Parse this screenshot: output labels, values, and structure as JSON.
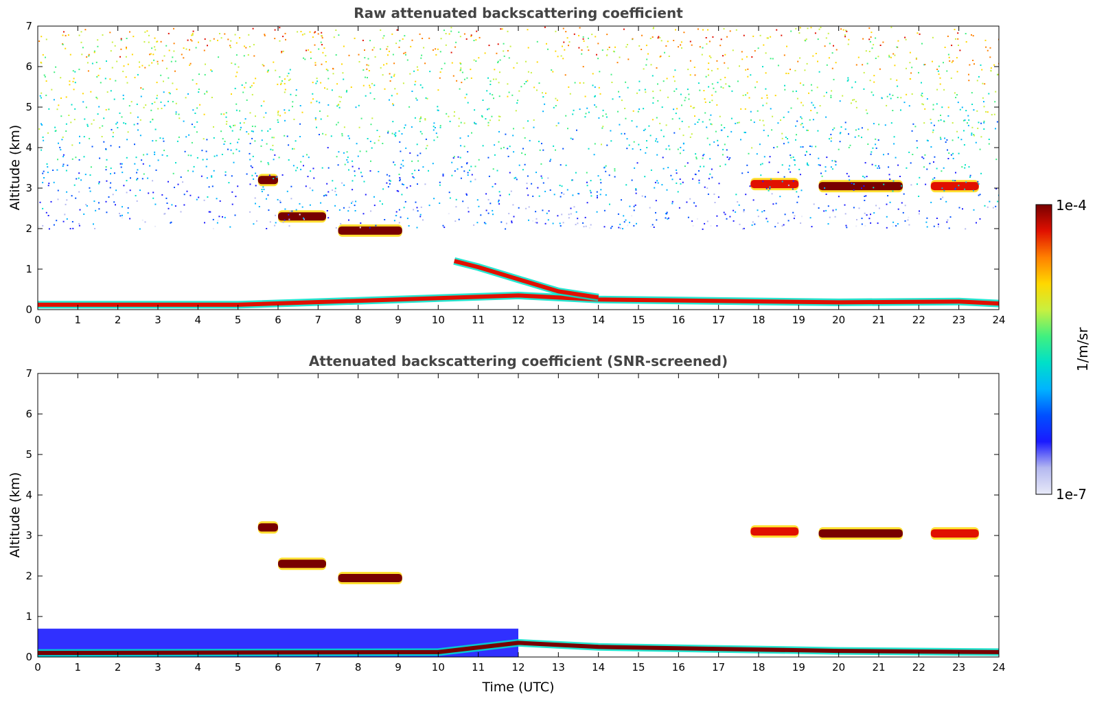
{
  "chart_data": [
    {
      "type": "heatmap",
      "title": "Raw attenuated backscattering coefficient",
      "xlabel": "",
      "ylabel": "Altitude (km)",
      "xlim": [
        0,
        24
      ],
      "ylim": [
        0,
        7
      ],
      "xticks": [
        "0",
        "1",
        "2",
        "3",
        "4",
        "5",
        "6",
        "7",
        "8",
        "9",
        "10",
        "11",
        "12",
        "13",
        "14",
        "15",
        "16",
        "17",
        "18",
        "19",
        "20",
        "21",
        "22",
        "23",
        "24"
      ],
      "yticks": [
        "0",
        "1",
        "2",
        "3",
        "4",
        "5",
        "6",
        "7"
      ],
      "features": [
        {
          "name": "surface layer",
          "segments": [
            [
              0,
              0.12
            ],
            [
              5,
              0.12
            ],
            [
              12,
              0.35
            ],
            [
              14,
              0.25
            ],
            [
              20,
              0.18
            ],
            [
              23,
              0.2
            ],
            [
              24,
              0.15
            ]
          ],
          "intensity": "high"
        },
        {
          "name": "aerosol layer top",
          "segments": [
            [
              10.4,
              1.2
            ],
            [
              11,
              1.05
            ],
            [
              12,
              0.75
            ],
            [
              13,
              0.45
            ],
            [
              14,
              0.3
            ]
          ],
          "intensity": "high"
        },
        {
          "name": "cloud 1",
          "t": [
            5.5,
            6.0
          ],
          "z": 3.2,
          "intensity": "very high"
        },
        {
          "name": "cloud 2",
          "t": [
            6.0,
            7.2
          ],
          "z": 2.3,
          "intensity": "very high"
        },
        {
          "name": "cloud 3",
          "t": [
            7.5,
            9.1
          ],
          "z": 1.95,
          "intensity": "very high"
        },
        {
          "name": "cloud 4",
          "t": [
            17.8,
            19.0
          ],
          "z": 3.1,
          "intensity": "high"
        },
        {
          "name": "cloud 5",
          "t": [
            19.5,
            21.6
          ],
          "z": 3.05,
          "intensity": "very high"
        },
        {
          "name": "cloud 6",
          "t": [
            22.3,
            23.5
          ],
          "z": 3.05,
          "intensity": "high"
        },
        {
          "name": "noise region",
          "t": [
            0,
            24
          ],
          "z": [
            2,
            7
          ],
          "intensity": "noisy"
        }
      ]
    },
    {
      "type": "heatmap",
      "title": "Attenuated backscattering coefficient (SNR-screened)",
      "xlabel": "Time (UTC)",
      "ylabel": "Altitude (km)",
      "xlim": [
        0,
        24
      ],
      "ylim": [
        0,
        7
      ],
      "xticks": [
        "0",
        "1",
        "2",
        "3",
        "4",
        "5",
        "6",
        "7",
        "8",
        "9",
        "10",
        "11",
        "12",
        "13",
        "14",
        "15",
        "16",
        "17",
        "18",
        "19",
        "20",
        "21",
        "22",
        "23",
        "24"
      ],
      "yticks": [
        "0",
        "1",
        "2",
        "3",
        "4",
        "5",
        "6",
        "7"
      ],
      "features": [
        {
          "name": "boundary layer",
          "t": [
            0,
            12
          ],
          "z": [
            0,
            0.7
          ],
          "intensity": "medium"
        },
        {
          "name": "surface layer",
          "segments": [
            [
              0,
              0.1
            ],
            [
              10,
              0.12
            ],
            [
              12,
              0.35
            ],
            [
              14,
              0.25
            ],
            [
              20,
              0.15
            ],
            [
              24,
              0.12
            ]
          ],
          "intensity": "very high"
        },
        {
          "name": "cloud 1",
          "t": [
            5.5,
            6.0
          ],
          "z": 3.2,
          "intensity": "very high"
        },
        {
          "name": "cloud 2",
          "t": [
            6.0,
            7.2
          ],
          "z": 2.3,
          "intensity": "very high"
        },
        {
          "name": "cloud 3",
          "t": [
            7.5,
            9.1
          ],
          "z": 1.95,
          "intensity": "very high"
        },
        {
          "name": "cloud 4",
          "t": [
            17.8,
            19.0
          ],
          "z": 3.1,
          "intensity": "high"
        },
        {
          "name": "cloud 5",
          "t": [
            19.5,
            21.6
          ],
          "z": 3.05,
          "intensity": "very high"
        },
        {
          "name": "cloud 6",
          "t": [
            22.3,
            23.5
          ],
          "z": 3.05,
          "intensity": "high"
        }
      ]
    }
  ],
  "colorbar": {
    "label": "1/m/sr",
    "max_label": "1e-4",
    "min_label": "1e-7",
    "range": [
      1e-07,
      0.0001
    ],
    "scale": "log",
    "colors": [
      "#e8eaf8",
      "#b4b8f0",
      "#1a1aff",
      "#0050ff",
      "#00b4ff",
      "#00e0c8",
      "#40f080",
      "#c8f040",
      "#ffd800",
      "#ff8000",
      "#e01000",
      "#780000"
    ]
  }
}
